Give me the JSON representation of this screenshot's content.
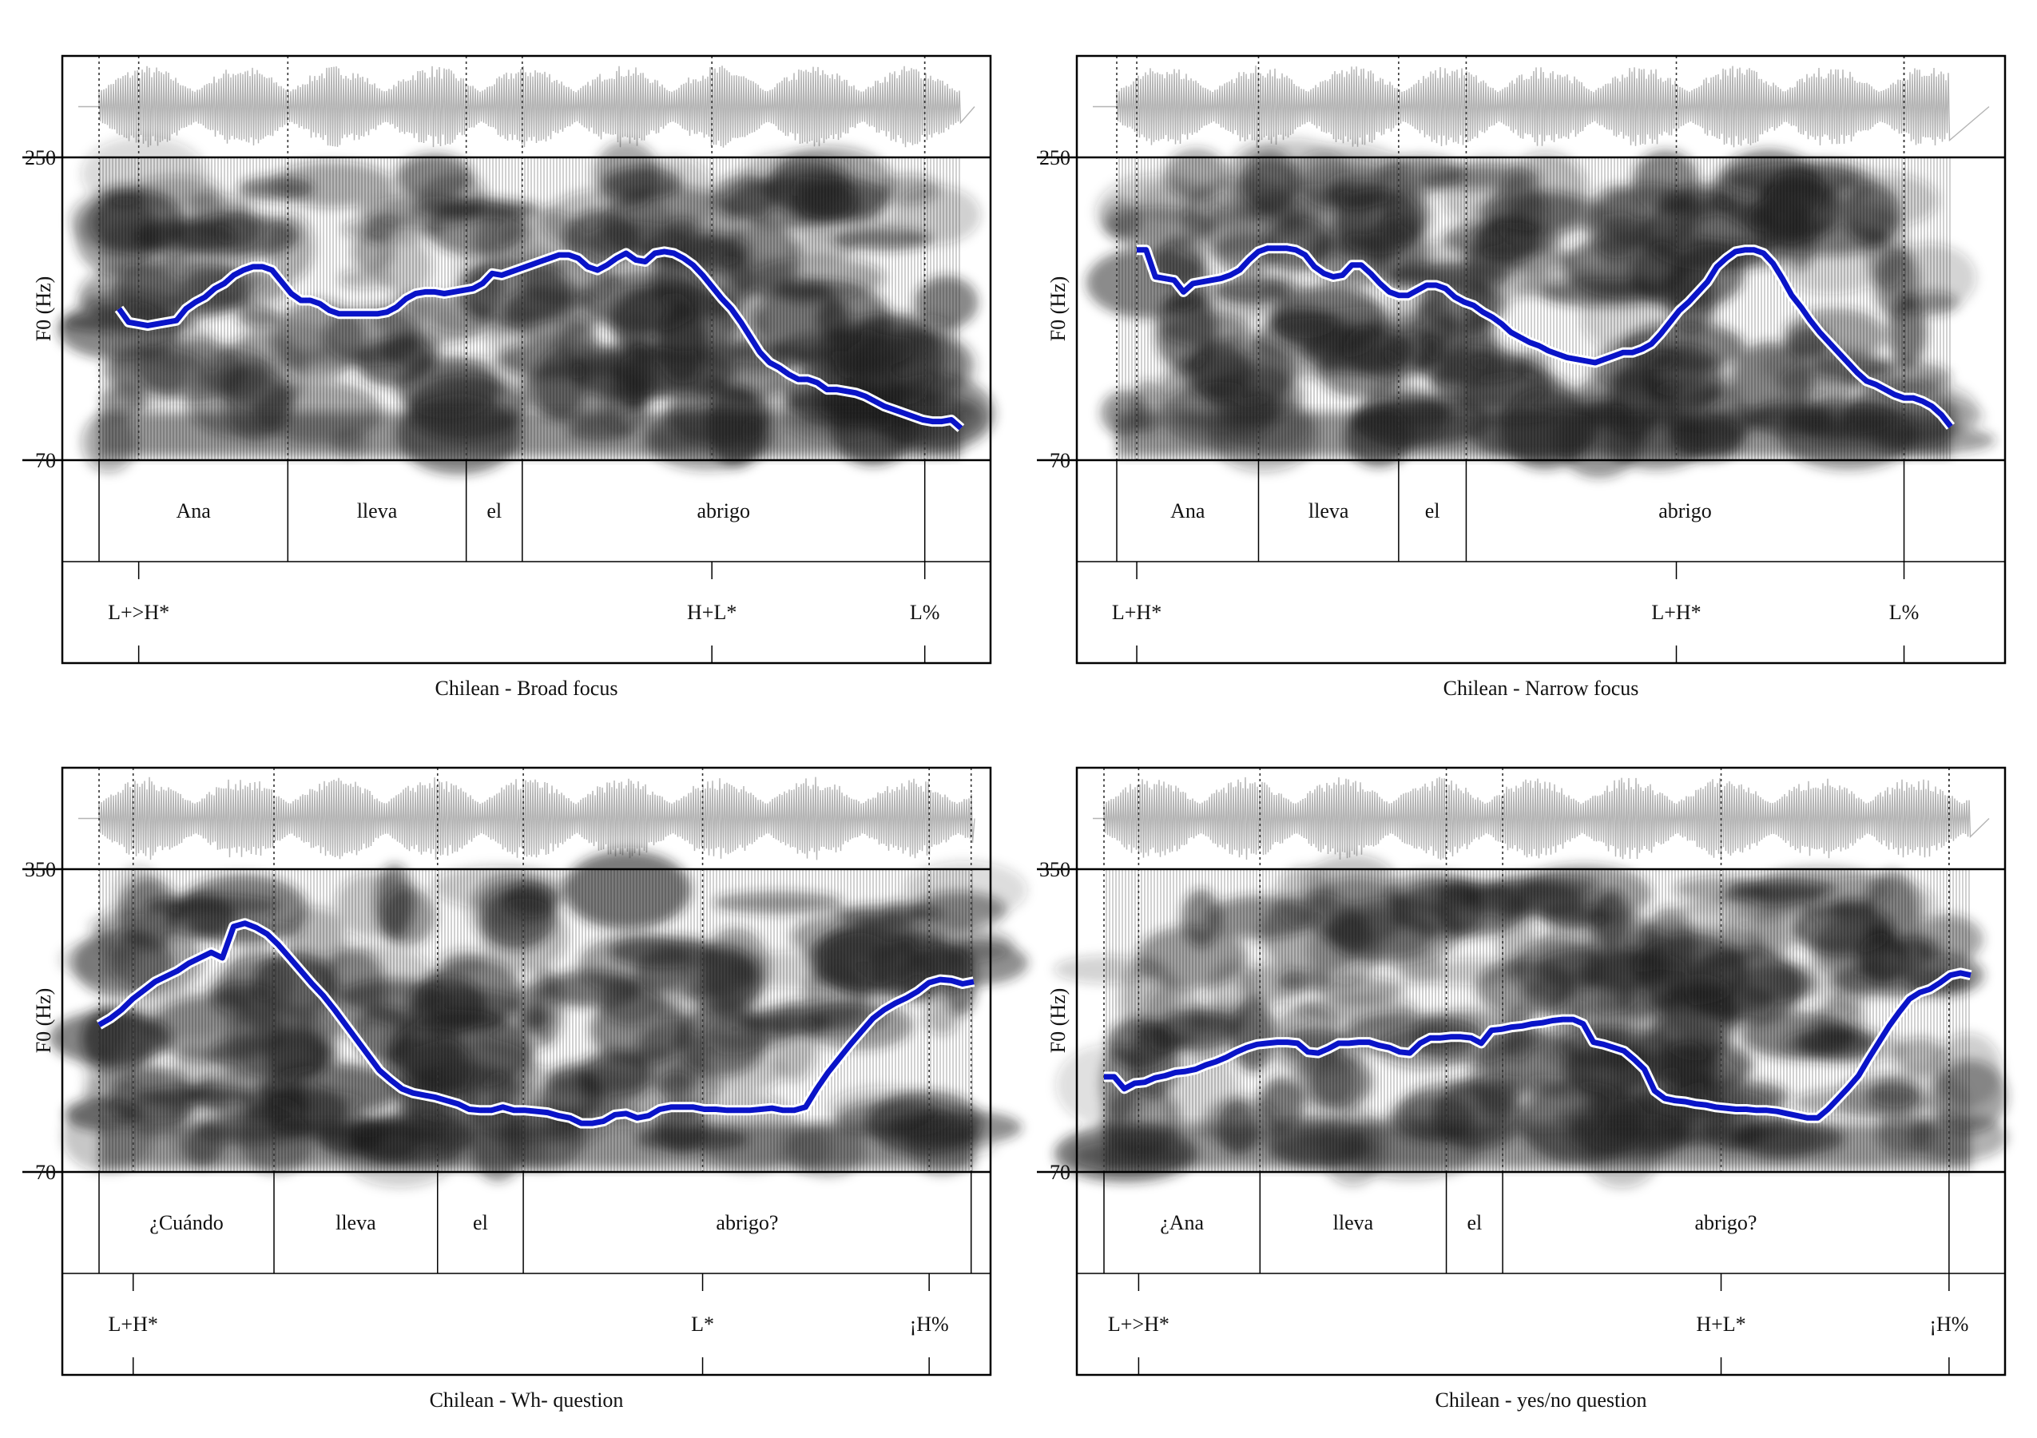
{
  "colors": {
    "f0_contour": "#0a14c8",
    "waveform": "#b4b4b4",
    "frame": "#000000",
    "spectrogram": "#222222"
  },
  "y_axis_label": "F0 (Hz)",
  "panels": [
    {
      "caption": "Chilean - Broad focus",
      "f0_max": "250",
      "f0_min": "70",
      "time_range": [
        0,
        1.0
      ],
      "word_tier": [
        {
          "text": "Ana",
          "start": 0.0,
          "end": 0.219
        },
        {
          "text": "lleva",
          "start": 0.219,
          "end": 0.426
        },
        {
          "text": "el",
          "start": 0.426,
          "end": 0.491
        },
        {
          "text": "abrigo",
          "start": 0.491,
          "end": 0.958
        }
      ],
      "tone_tier": [
        {
          "text": "L+>H*",
          "t": 0.046
        },
        {
          "text": "H+L*",
          "t": 0.711
        },
        {
          "text": "L%",
          "t": 0.958
        }
      ],
      "f0_hz": [
        160,
        152,
        151,
        150,
        151,
        152,
        153,
        160,
        164,
        167,
        172,
        175,
        180,
        183,
        185,
        185,
        183,
        176,
        169,
        165,
        165,
        163,
        159,
        157,
        157,
        157,
        157,
        157,
        158,
        161,
        166,
        169,
        170,
        170,
        169,
        170,
        171,
        172,
        175,
        181,
        180,
        182,
        184,
        186,
        188,
        190,
        192,
        192,
        190,
        185,
        183,
        186,
        190,
        193,
        189,
        188,
        193,
        194,
        193,
        190,
        186,
        180,
        173,
        166,
        160,
        152,
        143,
        134,
        128,
        125,
        121,
        118,
        118,
        116,
        112,
        112,
        111,
        110,
        108,
        105,
        102,
        100,
        98,
        96,
        94,
        93,
        93,
        94,
        89
      ]
    },
    {
      "caption": "Chilean - Narrow focus",
      "f0_max": "250",
      "f0_min": "70",
      "time_range": [
        0,
        1.0
      ],
      "word_tier": [
        {
          "text": "Ana",
          "start": 0.0,
          "end": 0.17
        },
        {
          "text": "lleva",
          "start": 0.17,
          "end": 0.338
        },
        {
          "text": "el",
          "start": 0.338,
          "end": 0.419
        },
        {
          "text": "abrigo",
          "start": 0.419,
          "end": 0.944
        }
      ],
      "tone_tier": [
        {
          "text": "L+H*",
          "t": 0.024
        },
        {
          "text": "L+H*",
          "t": 0.671
        },
        {
          "text": "L%",
          "t": 0.944
        }
      ],
      "f0_hz": [
        195,
        195,
        179,
        178,
        177,
        170,
        175,
        176,
        177,
        178,
        180,
        183,
        189,
        194,
        196,
        196,
        196,
        195,
        192,
        185,
        181,
        179,
        180,
        186,
        186,
        181,
        175,
        170,
        168,
        168,
        171,
        174,
        174,
        172,
        167,
        164,
        162,
        158,
        155,
        151,
        146,
        143,
        140,
        138,
        135,
        133,
        131,
        130,
        129,
        128,
        130,
        132,
        134,
        134,
        136,
        139,
        145,
        152,
        159,
        164,
        170,
        176,
        185,
        190,
        194,
        195,
        195,
        193,
        187,
        178,
        168,
        161,
        153,
        146,
        140,
        134,
        128,
        122,
        117,
        115,
        112,
        109,
        107,
        107,
        105,
        102,
        97,
        90
      ]
    },
    {
      "caption": "Chilean - Wh- question",
      "f0_max": "350",
      "f0_min": "70",
      "time_range": [
        0,
        1.0
      ],
      "word_tier": [
        {
          "text": "¿Cuándo",
          "start": 0.0,
          "end": 0.2
        },
        {
          "text": "lleva",
          "start": 0.2,
          "end": 0.387
        },
        {
          "text": "el",
          "start": 0.387,
          "end": 0.485
        },
        {
          "text": "abrigo?",
          "start": 0.485,
          "end": 0.997
        }
      ],
      "tone_tier": [
        {
          "text": "L+H*",
          "t": 0.039
        },
        {
          "text": "L*",
          "t": 0.69
        },
        {
          "text": "¡H%",
          "t": 0.949
        }
      ],
      "f0_hz": [
        206,
        212,
        220,
        230,
        238,
        246,
        251,
        256,
        263,
        268,
        273,
        268,
        297,
        300,
        296,
        290,
        280,
        268,
        256,
        244,
        233,
        220,
        206,
        192,
        178,
        164,
        155,
        147,
        143,
        141,
        139,
        136,
        133,
        128,
        127,
        127,
        130,
        127,
        127,
        126,
        125,
        122,
        120,
        115,
        115,
        117,
        123,
        124,
        120,
        122,
        128,
        130,
        130,
        130,
        128,
        128,
        127,
        127,
        127,
        128,
        129,
        127,
        127,
        130,
        147,
        162,
        175,
        188,
        200,
        212,
        220,
        226,
        231,
        237,
        245,
        248,
        247,
        244,
        246
      ]
    },
    {
      "caption": "Chilean - yes/no question",
      "f0_max": "350",
      "f0_min": "70",
      "time_range": [
        0,
        1.0
      ],
      "word_tier": [
        {
          "text": "¿Ana",
          "start": 0.0,
          "end": 0.18
        },
        {
          "text": "lleva",
          "start": 0.18,
          "end": 0.395
        },
        {
          "text": "el",
          "start": 0.395,
          "end": 0.46
        },
        {
          "text": "abrigo?",
          "start": 0.46,
          "end": 0.975
        }
      ],
      "tone_tier": [
        {
          "text": "L+>H*",
          "t": 0.04
        },
        {
          "text": "H+L*",
          "t": 0.712
        },
        {
          "text": "¡H%",
          "t": 0.975
        }
      ],
      "f0_hz": [
        158,
        158,
        147,
        152,
        153,
        157,
        159,
        162,
        163,
        165,
        169,
        172,
        176,
        181,
        185,
        188,
        189,
        190,
        190,
        189,
        181,
        180,
        184,
        189,
        189,
        190,
        190,
        187,
        185,
        181,
        180,
        189,
        194,
        194,
        195,
        195,
        194,
        189,
        201,
        202,
        204,
        205,
        207,
        208,
        210,
        211,
        211,
        207,
        190,
        188,
        185,
        182,
        174,
        165,
        145,
        138,
        136,
        135,
        133,
        132,
        130,
        129,
        128,
        128,
        127,
        127,
        126,
        124,
        122,
        120,
        120,
        128,
        138,
        148,
        159,
        175,
        190,
        205,
        218,
        230,
        236,
        239,
        245,
        252,
        254,
        252
      ]
    }
  ]
}
